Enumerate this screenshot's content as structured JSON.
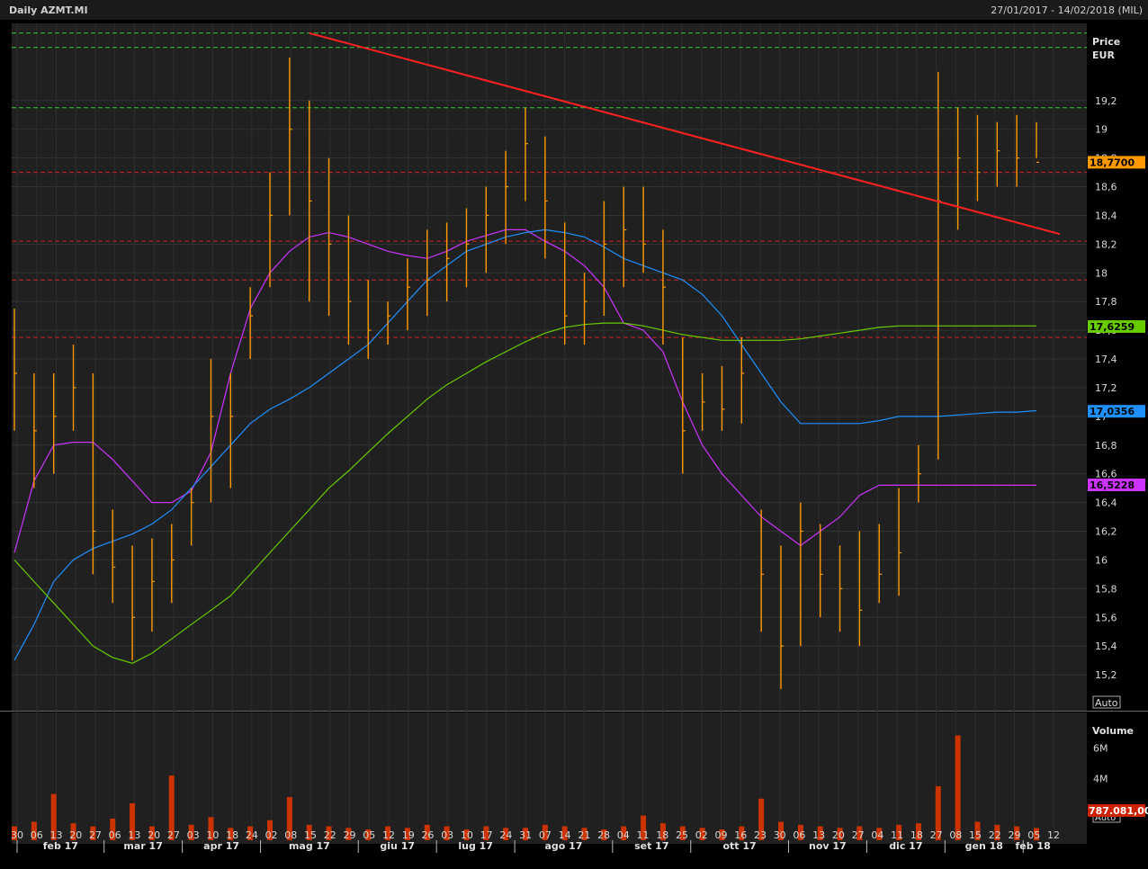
{
  "header": {
    "title": "Daily AZMT.MI",
    "date_range": "27/01/2017 - 14/02/2018 (MIL)"
  },
  "price_panel": {
    "axis_title": "Price",
    "axis_unit": "EUR",
    "auto_label": "Auto",
    "y_ticks": [
      "15,2",
      "15,4",
      "15,6",
      "15,8",
      "16",
      "16,2",
      "16,4",
      "16,6",
      "16,8",
      "17",
      "17,2",
      "17,4",
      "17,6",
      "17,8",
      "18",
      "18,2",
      "18,4",
      "18,6",
      "18,8",
      "19",
      "19,2"
    ],
    "y_tick_values": [
      15.2,
      15.4,
      15.6,
      15.8,
      16,
      16.2,
      16.4,
      16.6,
      16.8,
      17,
      17.2,
      17.4,
      17.6,
      17.8,
      18,
      18.2,
      18.4,
      18.6,
      18.8,
      19,
      19.2
    ],
    "badges": [
      {
        "label": "18,7700",
        "value": 18.77,
        "color": "#ff9900",
        "text_color": "#000000"
      },
      {
        "label": "17,6259",
        "value": 17.6259,
        "color": "#66cc00",
        "text_color": "#000000"
      },
      {
        "label": "17,0356",
        "value": 17.0356,
        "color": "#1e90ff",
        "text_color": "#000000"
      },
      {
        "label": "16,5228",
        "value": 16.5228,
        "color": "#cc33ff",
        "text_color": "#000000"
      }
    ]
  },
  "volume_panel": {
    "axis_title": "Volume",
    "auto_label": "Auto",
    "y_ticks": [
      "2M",
      "4M",
      "6M"
    ],
    "y_tick_values": [
      2000000,
      4000000,
      6000000
    ],
    "badge": {
      "label": "787.081,00",
      "value": 787081,
      "color": "#cc2200",
      "text_color": "#ffffff"
    }
  },
  "x_axis": {
    "day_ticks": [
      "30",
      "06",
      "13",
      "20",
      "27",
      "06",
      "13",
      "20",
      "27",
      "03",
      "10",
      "18",
      "24",
      "02",
      "08",
      "15",
      "22",
      "29",
      "05",
      "12",
      "19",
      "26",
      "03",
      "10",
      "17",
      "24",
      "31",
      "07",
      "14",
      "21",
      "28",
      "04",
      "11",
      "18",
      "25",
      "02",
      "09",
      "16",
      "23",
      "30",
      "06",
      "13",
      "20",
      "27",
      "04",
      "11",
      "18",
      "27",
      "08",
      "15",
      "22",
      "29",
      "05",
      "12"
    ],
    "month_labels": [
      "feb 17",
      "mar 17",
      "apr 17",
      "mag 17",
      "giu 17",
      "lug 17",
      "ago 17",
      "set 17",
      "ott 17",
      "nov 17",
      "dic 17",
      "gen 18",
      "feb 18"
    ]
  },
  "chart_data": {
    "type": "line",
    "title": "Daily AZMT.MI",
    "ylabel": "Price EUR",
    "ylim": [
      15.0,
      19.7
    ],
    "x": [
      "27/01/2017",
      "03/02/2017",
      "10/02/2017",
      "17/02/2017",
      "24/02/2017",
      "03/03/2017",
      "10/03/2017",
      "17/03/2017",
      "24/03/2017",
      "31/03/2017",
      "07/04/2017",
      "14/04/2017",
      "21/04/2017",
      "28/04/2017",
      "05/05/2017",
      "12/05/2017",
      "19/05/2017",
      "26/05/2017",
      "02/06/2017",
      "09/06/2017",
      "16/06/2017",
      "23/06/2017",
      "30/06/2017",
      "07/07/2017",
      "14/07/2017",
      "21/07/2017",
      "28/07/2017",
      "04/08/2017",
      "11/08/2017",
      "18/08/2017",
      "25/08/2017",
      "01/09/2017",
      "08/09/2017",
      "15/09/2017",
      "22/09/2017",
      "29/09/2017",
      "06/10/2017",
      "13/10/2017",
      "20/10/2017",
      "27/10/2017",
      "03/11/2017",
      "10/11/2017",
      "17/11/2017",
      "24/11/2017",
      "01/12/2017",
      "08/12/2017",
      "15/12/2017",
      "22/12/2017",
      "29/12/2017",
      "05/01/2018",
      "12/01/2018",
      "19/01/2018",
      "26/01/2018"
    ],
    "price_series": {
      "name": "AZMT.MI",
      "high": [
        17.75,
        17.3,
        17.3,
        17.5,
        17.3,
        16.35,
        16.1,
        16.15,
        16.25,
        16.5,
        17.4,
        17.3,
        17.9,
        18.7,
        19.5,
        19.2,
        18.8,
        18.4,
        17.95,
        17.8,
        18.1,
        18.3,
        18.35,
        18.45,
        18.6,
        18.85,
        19.15,
        18.95,
        18.35,
        18.0,
        18.5,
        18.6,
        18.6,
        18.3,
        17.55,
        17.3,
        17.35,
        17.55,
        16.35,
        16.1,
        16.4,
        16.25,
        16.1,
        16.2,
        16.25,
        16.5,
        16.8,
        19.4,
        19.15,
        19.1,
        19.05,
        19.1,
        19.05
      ],
      "low": [
        16.9,
        16.5,
        16.6,
        16.9,
        15.9,
        15.7,
        15.3,
        15.5,
        15.7,
        16.1,
        16.4,
        16.5,
        17.4,
        17.9,
        18.4,
        17.8,
        17.7,
        17.5,
        17.4,
        17.5,
        17.6,
        17.7,
        17.8,
        17.9,
        18.0,
        18.2,
        18.5,
        18.1,
        17.5,
        17.5,
        17.7,
        17.9,
        18.0,
        17.5,
        16.6,
        16.9,
        16.9,
        16.95,
        15.5,
        15.1,
        15.4,
        15.6,
        15.5,
        15.4,
        15.7,
        15.75,
        16.4,
        16.7,
        18.3,
        18.5,
        18.6,
        18.6,
        18.8
      ],
      "close": [
        17.3,
        16.9,
        17.0,
        17.2,
        16.2,
        15.95,
        15.6,
        15.85,
        16.0,
        16.4,
        17.0,
        17.0,
        17.7,
        18.4,
        19.0,
        18.5,
        18.2,
        17.8,
        17.6,
        17.7,
        17.9,
        17.95,
        18.1,
        18.2,
        18.4,
        18.6,
        18.9,
        18.5,
        17.7,
        17.8,
        18.2,
        18.3,
        18.2,
        17.9,
        16.9,
        17.1,
        17.05,
        17.3,
        15.9,
        15.4,
        16.2,
        15.9,
        15.8,
        15.65,
        15.9,
        16.05,
        16.6,
        18.5,
        18.8,
        18.7,
        18.85,
        18.8,
        18.77
      ]
    },
    "series": [
      {
        "name": "",
        "color": "#cc33ff",
        "values": [
          16.05,
          16.55,
          16.8,
          16.82,
          16.82,
          16.7,
          16.55,
          16.4,
          16.4,
          16.48,
          16.75,
          17.3,
          17.75,
          18.0,
          18.15,
          18.25,
          18.28,
          18.25,
          18.2,
          18.15,
          18.12,
          18.1,
          18.15,
          18.22,
          18.26,
          18.3,
          18.3,
          18.22,
          18.15,
          18.05,
          17.9,
          17.65,
          17.6,
          17.45,
          17.1,
          16.8,
          16.6,
          16.45,
          16.3,
          16.2,
          16.1,
          16.2,
          16.3,
          16.45,
          16.52,
          16.52,
          16.52,
          16.52,
          16.52,
          16.52,
          16.52,
          16.52,
          16.52
        ]
      },
      {
        "name": "",
        "color": "#1e90ff",
        "values": [
          15.3,
          15.55,
          15.85,
          16.0,
          16.08,
          16.13,
          16.18,
          16.25,
          16.35,
          16.5,
          16.65,
          16.8,
          16.95,
          17.05,
          17.12,
          17.2,
          17.3,
          17.4,
          17.5,
          17.65,
          17.8,
          17.95,
          18.05,
          18.15,
          18.2,
          18.25,
          18.28,
          18.3,
          18.28,
          18.25,
          18.18,
          18.1,
          18.05,
          18.0,
          17.95,
          17.85,
          17.7,
          17.5,
          17.3,
          17.1,
          16.95,
          16.95,
          16.95,
          16.95,
          16.97,
          17.0,
          17.0,
          17.0,
          17.01,
          17.02,
          17.03,
          17.03,
          17.04
        ]
      },
      {
        "name": "",
        "color": "#66cc00",
        "values": [
          16.0,
          15.85,
          15.7,
          15.55,
          15.4,
          15.32,
          15.28,
          15.35,
          15.45,
          15.55,
          15.65,
          15.75,
          15.9,
          16.05,
          16.2,
          16.35,
          16.5,
          16.62,
          16.75,
          16.88,
          17.0,
          17.12,
          17.22,
          17.3,
          17.38,
          17.45,
          17.52,
          17.58,
          17.62,
          17.64,
          17.65,
          17.65,
          17.63,
          17.6,
          17.57,
          17.55,
          17.53,
          17.53,
          17.53,
          17.53,
          17.54,
          17.56,
          17.58,
          17.6,
          17.62,
          17.63,
          17.63,
          17.63,
          17.63,
          17.63,
          17.63,
          17.63,
          17.63
        ]
      }
    ],
    "volume": {
      "name": "Volume",
      "ylim": [
        0,
        8000000
      ],
      "values": [
        900000,
        1200000,
        3000000,
        1100000,
        900000,
        1400000,
        2400000,
        900000,
        4200000,
        1000000,
        1500000,
        800000,
        900000,
        1300000,
        2800000,
        1000000,
        900000,
        800000,
        700000,
        900000,
        800000,
        1000000,
        900000,
        700000,
        900000,
        800000,
        800000,
        1000000,
        900000,
        800000,
        700000,
        900000,
        1600000,
        1100000,
        900000,
        800000,
        700000,
        900000,
        2700000,
        1200000,
        1000000,
        900000,
        800000,
        900000,
        800000,
        1000000,
        1100000,
        3500000,
        6800000,
        1200000,
        1000000,
        900000,
        787081
      ]
    },
    "horizontal_lines": [
      {
        "value": 19.67,
        "color": "#33cc33",
        "style": "dashed"
      },
      {
        "value": 19.57,
        "color": "#33cc33",
        "style": "dashed"
      },
      {
        "value": 19.15,
        "color": "#33cc33",
        "style": "dashed"
      },
      {
        "value": 18.7,
        "color": "#cc2222",
        "style": "dashed"
      },
      {
        "value": 18.22,
        "color": "#cc2222",
        "style": "dashed"
      },
      {
        "value": 17.95,
        "color": "#cc2222",
        "style": "dashed"
      },
      {
        "value": 17.55,
        "color": "#cc2222",
        "style": "dashed"
      }
    ],
    "trendline": {
      "color": "#ff2020",
      "from": {
        "x": "15/05/2017",
        "y": 19.67
      },
      "to": {
        "x": "30/01/2018",
        "y": 18.27
      }
    },
    "grid": true
  }
}
